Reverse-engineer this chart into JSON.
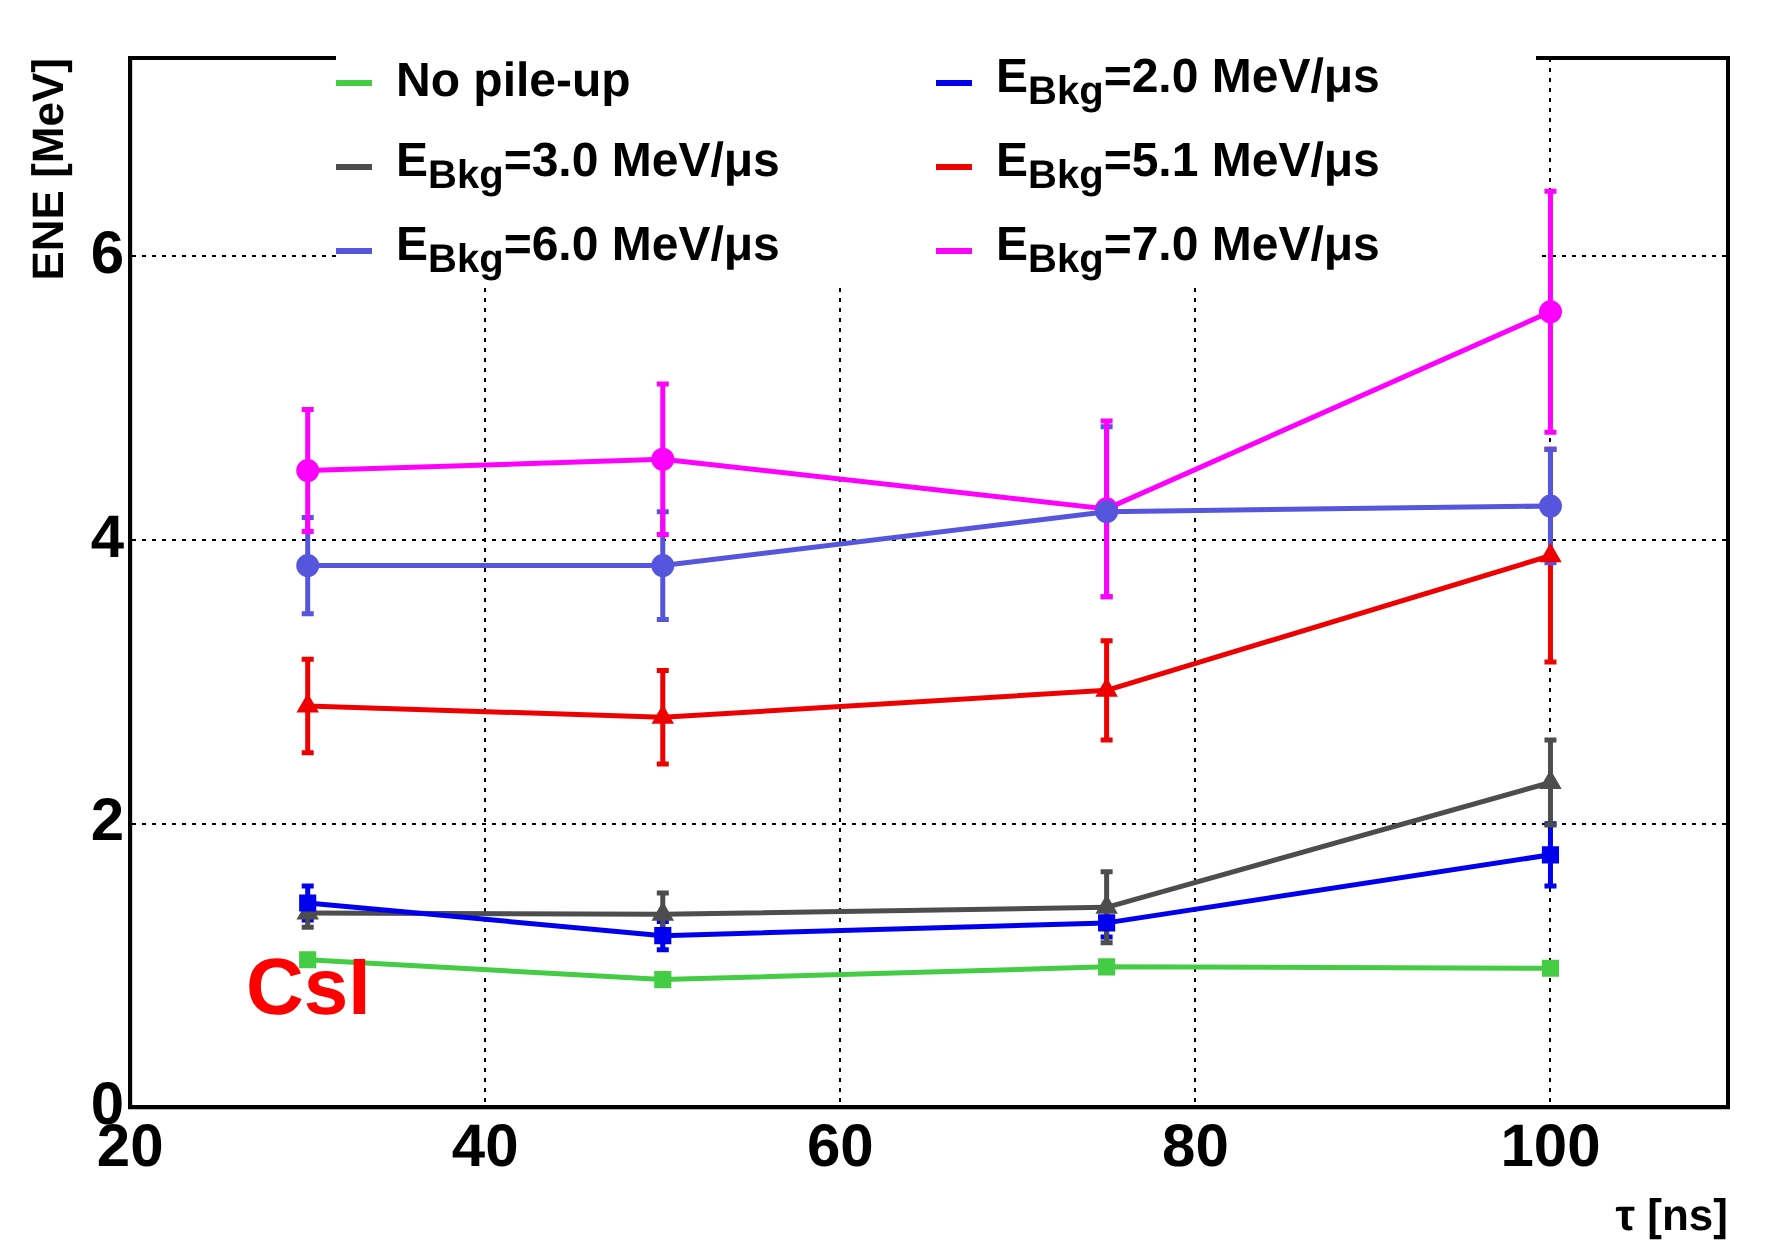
{
  "chart_data": {
    "type": "line",
    "xlabel": "τ [ns]",
    "ylabel": "ENE [MeV]",
    "x": [
      30,
      50,
      75,
      100
    ],
    "xlim": [
      20,
      110
    ],
    "xticks": [
      20,
      40,
      60,
      80,
      100
    ],
    "ylim": [
      0,
      7.4
    ],
    "yticks": [
      0,
      2,
      4,
      6
    ],
    "grid": true,
    "legend": "top",
    "annotations": [
      "CsI"
    ],
    "series": [
      {
        "name": "No pile-up",
        "color": "#44cc44",
        "marker": "square",
        "values": [
          1.04,
          0.9,
          0.99,
          0.98
        ]
      },
      {
        "name": "E$_{Bkg}$=2.0 MeV/μs",
        "color": "#0000ee",
        "marker": "square",
        "values": [
          1.44,
          1.21,
          1.3,
          1.78
        ],
        "errors": [
          0.12,
          0.1,
          0.1,
          0.22
        ]
      },
      {
        "name": "E$_{Bkg}$=3.0 MeV/μs",
        "color": "#4d4d4d",
        "marker": "triangle",
        "values": [
          1.37,
          1.36,
          1.41,
          2.29
        ],
        "errors": [
          0.1,
          0.15,
          0.25,
          0.3
        ]
      },
      {
        "name": "E$_{Bkg}$=5.1 MeV/μs",
        "color": "#ee0000",
        "marker": "triangle",
        "values": [
          2.83,
          2.75,
          2.94,
          3.89
        ],
        "errors": [
          0.33,
          0.33,
          0.35,
          0.75
        ]
      },
      {
        "name": "E$_{Bkg}$=6.0 MeV/μs",
        "color": "#5555dd",
        "marker": "circle",
        "values": [
          3.82,
          3.82,
          4.2,
          4.24
        ],
        "errors": [
          0.34,
          0.38,
          0.6,
          0.4
        ]
      },
      {
        "name": "E$_{Bkg}$=7.0 MeV/μs",
        "color": "#ff00ff",
        "marker": "circle",
        "values": [
          4.49,
          4.57,
          4.22,
          5.61
        ],
        "errors": [
          0.43,
          0.53,
          0.62,
          0.85
        ]
      }
    ]
  }
}
